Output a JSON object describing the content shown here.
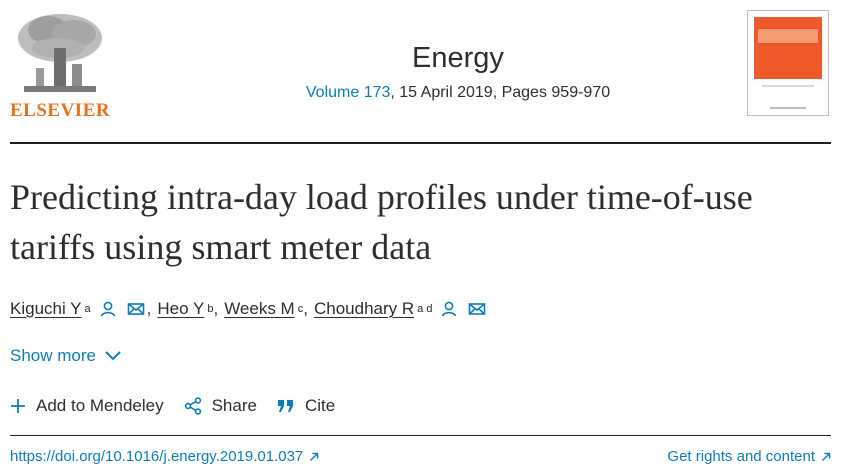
{
  "header": {
    "publisher": "ELSEVIER",
    "journal": "Energy",
    "volume_link": "Volume 173",
    "issue_rest": ", 15 April 2019, Pages 959-970",
    "cover_icon": "journal-cover-thumbnail"
  },
  "article": {
    "title": "Predicting intra-day load profiles under time-of-use tariffs using smart meter data"
  },
  "authors": [
    {
      "name": "Kiguchi Y",
      "aff": "a",
      "icons": [
        "person-icon",
        "envelope-icon"
      ],
      "sep": ","
    },
    {
      "name": "Heo Y",
      "aff": "b",
      "icons": [],
      "sep": ","
    },
    {
      "name": "Weeks M",
      "aff": "c",
      "icons": [],
      "sep": ","
    },
    {
      "name": "Choudhary R",
      "aff": "a d",
      "icons": [
        "person-icon",
        "envelope-icon"
      ],
      "sep": ""
    }
  ],
  "show_more": {
    "label": "Show more",
    "icon": "chevron-down-icon"
  },
  "actions": [
    {
      "label": "Add to Mendeley",
      "icon": "plus-icon"
    },
    {
      "label": "Share",
      "icon": "share-icon"
    },
    {
      "label": "Cite",
      "icon": "quote-icon"
    }
  ],
  "footer": {
    "doi": "https://doi.org/10.1016/j.energy.2019.01.037",
    "rights": "Get rights and content",
    "external_icon": "external-link-icon"
  },
  "colors": {
    "link": "#0c7dbb",
    "text": "#2e2e2e",
    "publisher_orange": "#e9711c",
    "cover_orange": "#ee5a2a"
  }
}
